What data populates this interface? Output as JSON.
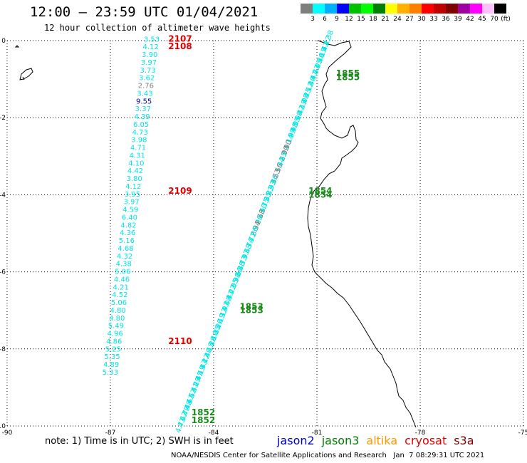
{
  "header": {
    "title": "12:00 – 23:59 UTC 01/04/2021",
    "subtitle": "12 hour collection of altimeter wave heights"
  },
  "colorbar": {
    "colors": [
      "#7f7f7f",
      "#00ffff",
      "#00b0ff",
      "#0000ff",
      "#00c000",
      "#00ff00",
      "#008000",
      "#ffff00",
      "#ffb000",
      "#ff8000",
      "#ff0000",
      "#c00000",
      "#800000",
      "#a000a0",
      "#ff00ff",
      "#ffc0ff",
      "#000000"
    ],
    "labels": [
      "3",
      "6",
      "9",
      "12",
      "15",
      "18",
      "21",
      "24",
      "27",
      "30",
      "33",
      "36",
      "39",
      "42",
      "45",
      "70"
    ],
    "unit": "(ft)"
  },
  "axes": {
    "lon_ticks": [
      "-90",
      "-87",
      "-84",
      "-81",
      "-78",
      "-75"
    ],
    "lat_ticks": [
      "0",
      "-2",
      "-4",
      "-6",
      "-8",
      "-10"
    ],
    "lon_range": [
      -90,
      -75
    ],
    "lat_range": [
      0,
      -10
    ]
  },
  "colors": {
    "cyan": "#00e5e5",
    "gray": "#808080",
    "navy": "#0000a0",
    "red": "#e00000",
    "green": "#1a8a1a",
    "coast": "#000000",
    "grid": "#000000"
  },
  "track1": {
    "lon": -85.8,
    "lat_start": 0.05,
    "lat_step": 0.201,
    "values": [
      "3.53",
      "4.12",
      "3.90",
      "3.97",
      "3.73",
      "3.62",
      "2.76",
      "3.43",
      "9.55",
      "3.37",
      "4.39",
      "6.05",
      "4.73",
      "3.98",
      "4.71",
      "4.31",
      "4.10",
      "4.42",
      "3.80",
      "4.12",
      "3.95",
      "3.97",
      "4.59",
      "6.40",
      "4.82",
      "4.36",
      "5.16",
      "4.68",
      "4.32",
      "4.38",
      "5.06",
      "4.46",
      "4.21",
      "4.52",
      "5.06",
      "4.80",
      "4.80",
      "5.49",
      "4.96",
      "4.86",
      "5.25",
      "5.35",
      "4.89",
      "5.33"
    ],
    "colors": [
      "cyan",
      "cyan",
      "cyan",
      "cyan",
      "cyan",
      "cyan",
      "gray",
      "cyan",
      "navy",
      "cyan",
      "cyan",
      "cyan",
      "cyan",
      "cyan",
      "cyan",
      "cyan",
      "cyan",
      "cyan",
      "cyan",
      "cyan",
      "cyan",
      "cyan",
      "cyan",
      "cyan",
      "cyan",
      "cyan",
      "cyan",
      "cyan",
      "cyan",
      "cyan",
      "cyan",
      "cyan",
      "cyan",
      "cyan",
      "cyan",
      "cyan",
      "cyan",
      "cyan",
      "cyan",
      "cyan",
      "cyan",
      "cyan",
      "cyan",
      "cyan"
    ],
    "times": [
      {
        "t": "2107",
        "lat": 0.05
      },
      {
        "t": "2108",
        "lat": -0.15
      },
      {
        "t": "2109",
        "lat": -3.9
      },
      {
        "t": "2110",
        "lat": -7.8
      }
    ]
  },
  "track2": {
    "lon_start": -80.6,
    "lat_start": 0.05,
    "lon_end": -84.9,
    "lat_end": -10.0,
    "values": [
      "4.38",
      "4.22",
      "4.47",
      "4.15",
      "4.36",
      "4.05",
      "4.33",
      "4.41",
      "4.30",
      "4.12",
      "4.25",
      "4.08",
      "4.19",
      "4.42",
      "3.98",
      "4.05",
      "3.98",
      "3.99",
      "4.14",
      "2.90",
      "2.90",
      "3.49",
      "3.44",
      "2.56",
      "3.53",
      "3.86",
      "3.93",
      "3.81",
      "3.85",
      "3.75",
      "3.60",
      "2.68",
      "3.96",
      "2.94",
      "3.86",
      "3.71",
      "3.74",
      "3.68",
      "3.97",
      "3.73",
      "3.88",
      "3.66",
      "3.98",
      "4.05",
      "4.22",
      "4.31",
      "4.08",
      "3.97",
      "4.12",
      "4.19",
      "4.26",
      "4.35",
      "4.10",
      "4.28",
      "4.15",
      "4.40",
      "4.22",
      "4.33",
      "4.19",
      "4.45",
      "4.29",
      "4.41",
      "4.52",
      "4.61",
      "4.48",
      "4.70",
      "4.62",
      "4.71"
    ],
    "gray_indices": [
      19,
      20,
      23,
      24,
      31,
      33
    ],
    "times": [
      {
        "t": "1855",
        "lat": -0.85
      },
      {
        "t": "1855",
        "lat": -0.95
      },
      {
        "t": "1854",
        "lat": -3.9
      },
      {
        "t": "1854",
        "lat": -4.0
      },
      {
        "t": "1853",
        "lat": -6.9
      },
      {
        "t": "1853",
        "lat": -7.0
      },
      {
        "t": "1852",
        "lat": -9.65
      },
      {
        "t": "1852",
        "lat": -9.85
      }
    ],
    "time_lons": [
      -80.1,
      -80.1,
      -80.9,
      -80.9,
      -82.9,
      -82.9,
      -84.3,
      -84.3
    ]
  },
  "footer": {
    "note": "note: 1) Time is in UTC; 2) SWH is in feet",
    "legend": [
      {
        "label": "jason2",
        "color": "#0000d0"
      },
      {
        "label": "jason3",
        "color": "#008000"
      },
      {
        "label": "altika",
        "color": "#ff9900"
      },
      {
        "label": "cryosat",
        "color": "#e00000"
      },
      {
        "label": "s3a",
        "color": "#800000"
      }
    ],
    "credits": "NOAA/NESDIS Center for Satellite Applications and Research   Jan  7 08:29:31 UTC 2021"
  }
}
